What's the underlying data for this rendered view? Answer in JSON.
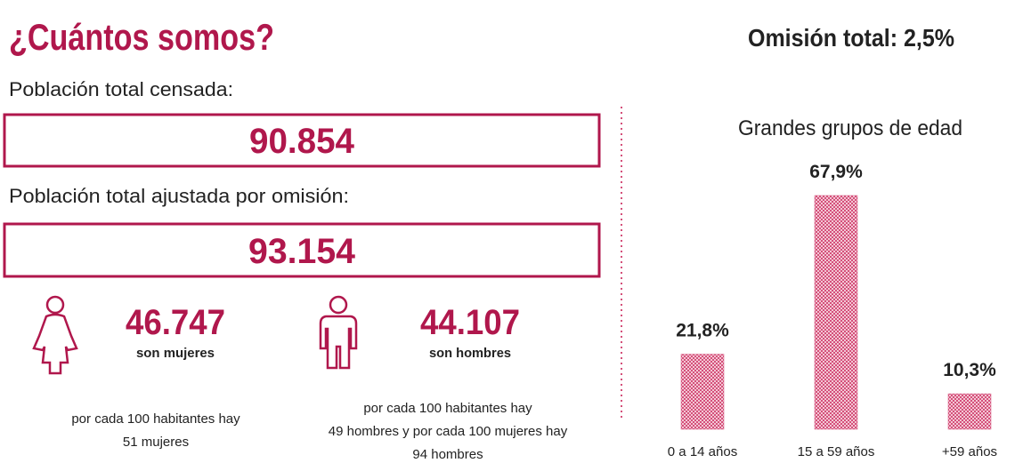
{
  "header": {
    "title": "¿Cuántos somos?",
    "omission": "Omisión total: 2,5%"
  },
  "census": {
    "label": "Población total censada:",
    "value": "90.854"
  },
  "adjusted": {
    "label": "Población total ajustada por omisión:",
    "value": "93.154"
  },
  "women": {
    "value": "46.747",
    "label": "son mujeres",
    "note": [
      "por cada 100 habitantes hay",
      "51 mujeres"
    ]
  },
  "men": {
    "value": "44.107",
    "label": "son hombres",
    "note": [
      "por cada 100 habitantes hay",
      "49 hombres y por cada 100 mujeres hay",
      "94 hombres"
    ]
  },
  "chart_data": {
    "type": "bar",
    "title": "Grandes grupos de edad",
    "categories": [
      "0 a 14 años",
      "15 a 59 años",
      "+59 años"
    ],
    "values": [
      21.8,
      67.9,
      10.3
    ],
    "value_labels": [
      "21,8%",
      "67,9%",
      "10,3%"
    ],
    "color": "#d4507a"
  }
}
